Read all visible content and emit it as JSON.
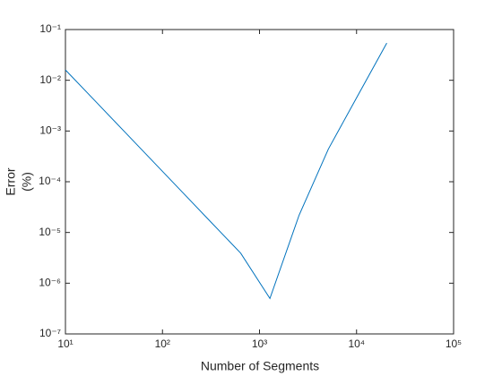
{
  "chart_data": {
    "type": "line",
    "xlabel": "Number of Segments",
    "ylabel": [
      "Error",
      "(%)"
    ],
    "x": [
      10,
      20,
      40,
      80,
      160,
      320,
      640,
      1280,
      2560,
      5120,
      10240,
      20480
    ],
    "series": [
      {
        "color": "#0072bd",
        "values": [
          0.016,
          0.004,
          0.001,
          0.00025,
          6.25e-05,
          1.56e-05,
          3.9e-06,
          5e-07,
          2.2e-05,
          0.00044,
          0.0049,
          0.054
        ]
      }
    ],
    "xscale": "log",
    "yscale": "log",
    "xlim": [
      10,
      100000
    ],
    "ylim": [
      1e-07,
      0.1
    ],
    "xticks": [
      {
        "value": 10,
        "label": "10¹"
      },
      {
        "value": 100,
        "label": "10²"
      },
      {
        "value": 1000,
        "label": "10³"
      },
      {
        "value": 10000,
        "label": "10⁴"
      },
      {
        "value": 100000,
        "label": "10⁵"
      }
    ],
    "yticks": [
      {
        "value": 1e-07,
        "label": "10⁻⁷"
      },
      {
        "value": 1e-06,
        "label": "10⁻⁶"
      },
      {
        "value": 1e-05,
        "label": "10⁻⁵"
      },
      {
        "value": 0.0001,
        "label": "10⁻⁴"
      },
      {
        "value": 0.001,
        "label": "10⁻³"
      },
      {
        "value": 0.01,
        "label": "10⁻²"
      },
      {
        "value": 0.1,
        "label": "10⁻¹"
      }
    ],
    "grid": false
  }
}
